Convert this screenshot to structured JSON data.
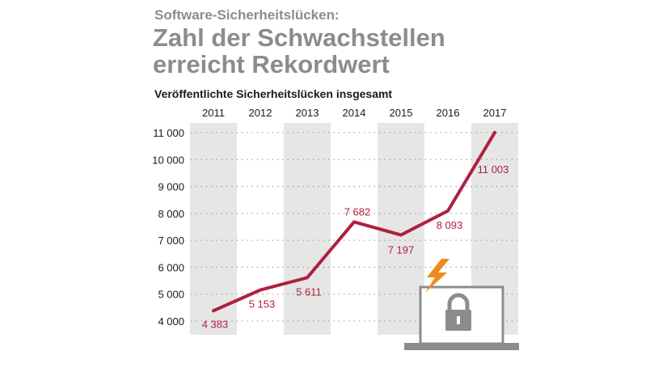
{
  "header": {
    "kicker": "Software-Sicherheitslücken:",
    "title": "Zahl der Schwachstellen erreicht Rekordwert"
  },
  "chart_data": {
    "type": "line",
    "title": "Zahl der Schwachstellen erreicht Rekordwert",
    "subtitle": "Veröffentlichte Sicherheitslücken insgesamt",
    "x": [
      "2011",
      "2012",
      "2013",
      "2014",
      "2015",
      "2016",
      "2017"
    ],
    "series": [
      {
        "values": [
          4383,
          5153,
          5611,
          7682,
          7197,
          8093,
          11003
        ],
        "labels": [
          "4 383",
          "5 153",
          "5 611",
          "7 682",
          "7 197",
          "8 093",
          "11 003"
        ]
      }
    ],
    "ylim": [
      4000,
      11000
    ],
    "yticks": [
      4000,
      5000,
      6000,
      7000,
      8000,
      9000,
      10000,
      11000
    ],
    "ytick_labels": [
      "4 000",
      "5 000",
      "6 000",
      "7 000",
      "8 000",
      "9 000",
      "10 000",
      "11 000"
    ],
    "x_axis_position": "top",
    "grid": "dotted horizontal",
    "alternating_column_shading": true,
    "colors": {
      "line": "#b0203e",
      "shade": "#e6e6e6",
      "text": "#1a1a1a",
      "heading": "#8c8c8c",
      "icon": "#8c8c8c",
      "bolt": "#f08a1c"
    },
    "icon": "laptop-padlock-lightning-icon"
  }
}
